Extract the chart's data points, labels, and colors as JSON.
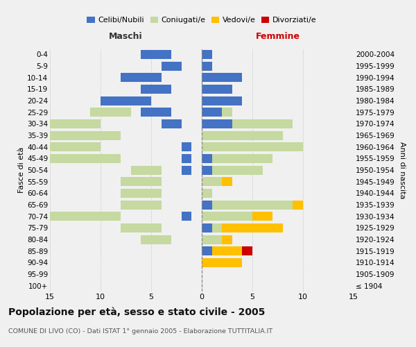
{
  "age_groups": [
    "100+",
    "95-99",
    "90-94",
    "85-89",
    "80-84",
    "75-79",
    "70-74",
    "65-69",
    "60-64",
    "55-59",
    "50-54",
    "45-49",
    "40-44",
    "35-39",
    "30-34",
    "25-29",
    "20-24",
    "15-19",
    "10-14",
    "5-9",
    "0-4"
  ],
  "birth_years": [
    "≤ 1904",
    "1905-1909",
    "1910-1914",
    "1915-1919",
    "1920-1924",
    "1925-1929",
    "1930-1934",
    "1935-1939",
    "1940-1944",
    "1945-1949",
    "1950-1954",
    "1955-1959",
    "1960-1964",
    "1965-1969",
    "1970-1974",
    "1975-1979",
    "1980-1984",
    "1985-1989",
    "1990-1994",
    "1995-1999",
    "2000-2004"
  ],
  "maschi": {
    "celibi": [
      0,
      0,
      0,
      0,
      0,
      0,
      1,
      0,
      0,
      0,
      1,
      1,
      1,
      0,
      2,
      3,
      5,
      3,
      4,
      2,
      3
    ],
    "coniugati": [
      0,
      0,
      0,
      0,
      3,
      4,
      7,
      4,
      4,
      4,
      3,
      7,
      9,
      8,
      8,
      4,
      0,
      0,
      0,
      0,
      0
    ],
    "vedovi": [
      0,
      0,
      0,
      0,
      1,
      0,
      1,
      0,
      0,
      0,
      0,
      1,
      1,
      0,
      0,
      0,
      0,
      0,
      0,
      0,
      0
    ],
    "divorziati": [
      0,
      0,
      0,
      0,
      0,
      0,
      0,
      0,
      1,
      1,
      0,
      0,
      0,
      0,
      0,
      0,
      0,
      0,
      0,
      0,
      0
    ]
  },
  "femmine": {
    "nubili": [
      0,
      0,
      0,
      1,
      0,
      1,
      0,
      1,
      0,
      0,
      1,
      1,
      0,
      0,
      3,
      2,
      4,
      3,
      4,
      1,
      1
    ],
    "coniugate": [
      0,
      0,
      0,
      0,
      2,
      1,
      5,
      8,
      1,
      2,
      5,
      6,
      10,
      8,
      6,
      1,
      0,
      0,
      0,
      0,
      0
    ],
    "vedove": [
      0,
      0,
      4,
      3,
      1,
      6,
      2,
      1,
      0,
      1,
      0,
      0,
      0,
      0,
      0,
      0,
      0,
      0,
      0,
      0,
      0
    ],
    "divorziate": [
      0,
      0,
      0,
      1,
      0,
      0,
      0,
      0,
      0,
      0,
      0,
      0,
      0,
      0,
      0,
      0,
      0,
      0,
      0,
      0,
      0
    ]
  },
  "colors": {
    "celibi_nubili": "#4472c4",
    "coniugati": "#c5d9a0",
    "vedovi": "#ffc000",
    "divorziati": "#cc0000"
  },
  "xlim": 15,
  "title": "Popolazione per età, sesso e stato civile - 2005",
  "subtitle": "COMUNE DI LIVO (CO) - Dati ISTAT 1° gennaio 2005 - Elaborazione TUTTITALIA.IT",
  "label_maschi": "Maschi",
  "label_femmine": "Femmine",
  "ylabel_left": "Fasce di età",
  "ylabel_right": "Anni di nascita",
  "bg_color": "#f0f0f0",
  "legend": [
    "Celibi/Nubili",
    "Coniugati/e",
    "Vedovi/e",
    "Divorziati/e"
  ]
}
